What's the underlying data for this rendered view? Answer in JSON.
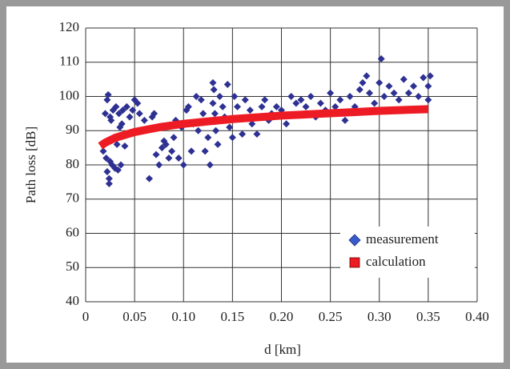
{
  "chart_data": {
    "type": "scatter",
    "xlabel": "d [km]",
    "ylabel": "Path loss [dB]",
    "xlim": [
      0,
      0.4
    ],
    "ylim": [
      40,
      120
    ],
    "xticks": [
      0,
      0.05,
      {
        "value": 0.1,
        "label": "0.10"
      },
      0.15,
      {
        "value": 0.2,
        "label": "0.20"
      },
      0.25,
      {
        "value": 0.3,
        "label": "0.30"
      },
      0.35,
      {
        "value": 0.4,
        "label": "0.40"
      }
    ],
    "yticks": [
      40,
      50,
      60,
      70,
      80,
      90,
      100,
      110,
      120
    ],
    "grid": true,
    "legend": "lower right",
    "series": [
      {
        "name": "measurement",
        "color": "#2e3192",
        "marker": "diamond",
        "x": [
          0.018,
          0.02,
          0.021,
          0.022,
          0.022,
          0.023,
          0.024,
          0.024,
          0.025,
          0.025,
          0.026,
          0.027,
          0.028,
          0.03,
          0.031,
          0.032,
          0.033,
          0.034,
          0.035,
          0.036,
          0.037,
          0.038,
          0.04,
          0.042,
          0.045,
          0.048,
          0.05,
          0.053,
          0.055,
          0.06,
          0.065,
          0.068,
          0.07,
          0.072,
          0.075,
          0.078,
          0.08,
          0.082,
          0.085,
          0.088,
          0.09,
          0.092,
          0.095,
          0.098,
          0.1,
          0.103,
          0.105,
          0.108,
          0.11,
          0.113,
          0.115,
          0.118,
          0.12,
          0.122,
          0.125,
          0.127,
          0.13,
          0.13,
          0.131,
          0.132,
          0.133,
          0.135,
          0.137,
          0.14,
          0.142,
          0.145,
          0.147,
          0.15,
          0.152,
          0.155,
          0.16,
          0.163,
          0.168,
          0.17,
          0.175,
          0.18,
          0.183,
          0.187,
          0.19,
          0.195,
          0.2,
          0.205,
          0.21,
          0.215,
          0.22,
          0.225,
          0.23,
          0.235,
          0.24,
          0.245,
          0.25,
          0.255,
          0.26,
          0.265,
          0.27,
          0.275,
          0.28,
          0.283,
          0.287,
          0.29,
          0.295,
          0.3,
          0.302,
          0.305,
          0.31,
          0.315,
          0.32,
          0.325,
          0.33,
          0.335,
          0.34,
          0.345,
          0.35,
          0.35,
          0.352
        ],
        "values": [
          84,
          95,
          82,
          99,
          78,
          100.5,
          76,
          74.5,
          94,
          81,
          93,
          80,
          96,
          79,
          97,
          86,
          78.5,
          95,
          91,
          80,
          92,
          96,
          85.5,
          97,
          94,
          96,
          99,
          98,
          95,
          93,
          76,
          94,
          95,
          83,
          80,
          85,
          87,
          86,
          82,
          84,
          88,
          93,
          82,
          91,
          80,
          96,
          97,
          84,
          92,
          100,
          90,
          99,
          95,
          84,
          88,
          80,
          104,
          98,
          102,
          95,
          90,
          86,
          100,
          97,
          94,
          103.5,
          91,
          88,
          100,
          97,
          89,
          99,
          96,
          92,
          89,
          97,
          99,
          93,
          95,
          97,
          96,
          92,
          100,
          98,
          99,
          97,
          100,
          94,
          98,
          96,
          101,
          97,
          99,
          93,
          100,
          97,
          102,
          104,
          106,
          101,
          98,
          104,
          111,
          100,
          103,
          101,
          99,
          105,
          101,
          103,
          100,
          105.5,
          103,
          99,
          106
        ]
      },
      {
        "name": "calculation",
        "color": "#ed1c24",
        "marker": "line",
        "x": [
          0.015,
          0.02,
          0.03,
          0.05,
          0.075,
          0.1,
          0.15,
          0.2,
          0.25,
          0.3,
          0.35
        ],
        "values": [
          85.5,
          86.5,
          87.9,
          89.6,
          91.0,
          92.0,
          93.4,
          94.4,
          95.1,
          95.8,
          96.3
        ]
      }
    ]
  }
}
